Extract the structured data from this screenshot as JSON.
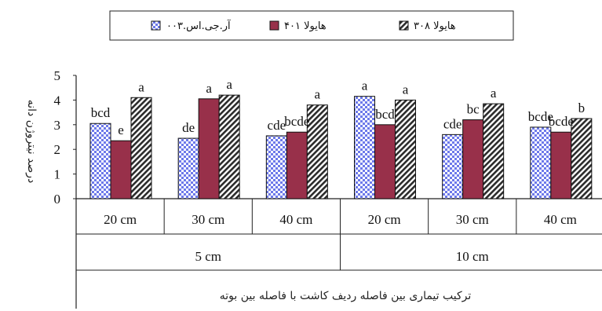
{
  "chart_data": {
    "type": "bar",
    "ylabel": "درصد نیتروژن دانه",
    "xlabel": "ترکیب تیماری بین فاصله ردیف کاشت با فاصله بین بوته",
    "ylim": [
      0,
      5
    ],
    "yticks": [
      "0",
      "1",
      "2",
      "3",
      "4",
      "5"
    ],
    "grid": false,
    "legend_position": "top",
    "outer_groups": [
      "5 cm",
      "10 cm"
    ],
    "categories": [
      "20 cm",
      "30 cm",
      "40 cm",
      "20 cm",
      "30 cm",
      "40 cm"
    ],
    "series": [
      {
        "name": "آر.جی.اس.۰۰۳",
        "values": [
          3.05,
          2.45,
          2.55,
          4.15,
          2.6,
          2.9
        ],
        "labels": [
          "bcd",
          "de",
          "cde",
          "a",
          "cde",
          "bcde"
        ],
        "fill": "#7a86ee"
      },
      {
        "name": "هایولا ۴۰۱",
        "values": [
          2.35,
          4.05,
          2.7,
          3.0,
          3.2,
          2.7
        ],
        "labels": [
          "e",
          "a",
          "bcde",
          "bcd",
          "bc",
          "bcde"
        ],
        "fill": "#98304a"
      },
      {
        "name": "هایولا ۳۰۸",
        "values": [
          4.1,
          4.2,
          3.8,
          4.0,
          3.85,
          3.25
        ],
        "labels": [
          "a",
          "a",
          "a",
          "a",
          "a",
          "b"
        ],
        "fill": "#333333"
      }
    ]
  }
}
